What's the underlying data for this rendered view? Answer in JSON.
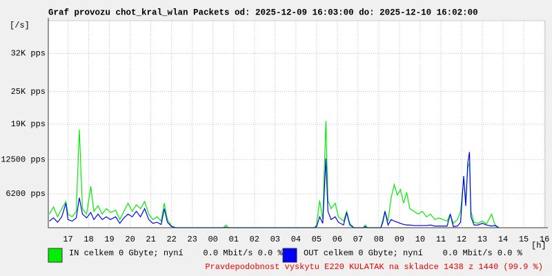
{
  "chart_data": {
    "type": "line",
    "title": "Graf provozu chot_kral_wlan Packets od: 2025-12-09 16:03:00 do: 2025-12-10 16:02:00",
    "y_label": "[/s]",
    "x_label": "[h]",
    "note": "Pravdepodobnost vyskytu E220 KULATAK na skladce 1438 z 1440 (99.9 %)",
    "grid": true,
    "xlim": [
      16.05,
      40.03
    ],
    "xticks": [
      17,
      18,
      19,
      20,
      21,
      22,
      23,
      {
        "value": 24,
        "label": "00"
      },
      {
        "value": 25,
        "label": "01"
      },
      {
        "value": 26,
        "label": "02"
      },
      {
        "value": 27,
        "label": "03"
      },
      {
        "value": 28,
        "label": "04"
      },
      {
        "value": 29,
        "label": "05"
      },
      {
        "value": 30,
        "label": "06"
      },
      {
        "value": 31,
        "label": "07"
      },
      {
        "value": 32,
        "label": "08"
      },
      {
        "value": 33,
        "label": "09"
      },
      {
        "value": 34,
        "label": "10"
      },
      {
        "value": 35,
        "label": "11"
      },
      {
        "value": 36,
        "label": "12"
      },
      {
        "value": 37,
        "label": "13"
      },
      {
        "value": 38,
        "label": "14"
      },
      {
        "value": 39,
        "label": "15"
      },
      {
        "value": 40,
        "label": "16"
      }
    ],
    "ylim": [
      0,
      38000
    ],
    "yticks": [
      {
        "value": 6200,
        "label": "6200 pps"
      },
      {
        "value": 12500,
        "label": "12500 pps"
      },
      {
        "value": 19000,
        "label": "19K pps"
      },
      {
        "value": 25000,
        "label": "25K pps"
      },
      {
        "value": 32000,
        "label": "32K pps"
      }
    ],
    "x": [
      16.1,
      16.3,
      16.5,
      16.7,
      16.9,
      17.0,
      17.2,
      17.4,
      17.55,
      17.7,
      17.9,
      18.1,
      18.25,
      18.45,
      18.65,
      18.85,
      19.05,
      19.3,
      19.5,
      19.7,
      19.9,
      20.1,
      20.3,
      20.5,
      20.7,
      20.9,
      21.1,
      21.3,
      21.5,
      21.65,
      21.8,
      22.0,
      22.2,
      24.5,
      24.62,
      24.75,
      28.9,
      29.0,
      29.15,
      29.3,
      29.45,
      29.55,
      29.7,
      29.9,
      30.05,
      30.3,
      30.45,
      30.6,
      30.8,
      31.25,
      31.35,
      31.45,
      32.1,
      32.2,
      32.3,
      32.45,
      32.6,
      32.75,
      32.9,
      33.05,
      33.2,
      33.35,
      33.5,
      33.7,
      33.9,
      34.1,
      34.3,
      34.5,
      34.7,
      34.9,
      35.1,
      35.3,
      35.45,
      35.6,
      35.8,
      35.95,
      36.1,
      36.2,
      36.3,
      36.38,
      36.45,
      36.6,
      36.8,
      37.0,
      37.2,
      37.45,
      37.6,
      37.8
    ],
    "series": [
      {
        "name": "IN celkem 0 Gbyte; nyní    0.0 Mbit/s 0.0 %",
        "color": "#00ee00",
        "values": [
          2500,
          3800,
          2000,
          3500,
          4800,
          2500,
          2000,
          3000,
          18000,
          3500,
          2500,
          7600,
          3000,
          4000,
          2500,
          3500,
          2800,
          3200,
          1500,
          3000,
          4500,
          3000,
          4200,
          3500,
          4800,
          2500,
          1500,
          2000,
          1200,
          4500,
          1500,
          300,
          0,
          0,
          500,
          0,
          0,
          500,
          5000,
          1500,
          19600,
          5000,
          3500,
          4500,
          2000,
          1200,
          3000,
          800,
          0,
          0,
          500,
          0,
          0,
          1500,
          3000,
          1200,
          5500,
          7900,
          6000,
          7000,
          4500,
          6500,
          3500,
          3000,
          2500,
          3000,
          2000,
          2500,
          1500,
          1800,
          1500,
          1200,
          2500,
          800,
          1500,
          3000,
          9000,
          5000,
          11000,
          12000,
          3000,
          1000,
          800,
          1200,
          700,
          2500,
          600,
          0
        ]
      },
      {
        "name": "OUT celkem 0 Gbyte; nyní    0.0 Mbit/s 0.0 %",
        "color": "#0000ff",
        "values": [
          1200,
          1800,
          1000,
          2000,
          4500,
          1500,
          1200,
          1800,
          5500,
          2500,
          1800,
          2800,
          1500,
          2500,
          1500,
          2000,
          1500,
          2000,
          800,
          1800,
          2500,
          2000,
          3000,
          2000,
          3500,
          1500,
          800,
          1000,
          600,
          3500,
          1000,
          200,
          0,
          0,
          100,
          0,
          0,
          200,
          2000,
          800,
          12700,
          3000,
          1500,
          2000,
          1000,
          500,
          2800,
          500,
          0,
          0,
          200,
          0,
          0,
          1000,
          3000,
          500,
          1500,
          1200,
          1000,
          800,
          600,
          500,
          500,
          400,
          400,
          400,
          400,
          500,
          300,
          300,
          300,
          300,
          2500,
          200,
          300,
          1000,
          9500,
          4000,
          12000,
          13900,
          2000,
          500,
          500,
          800,
          500,
          300,
          400,
          0
        ]
      }
    ]
  }
}
